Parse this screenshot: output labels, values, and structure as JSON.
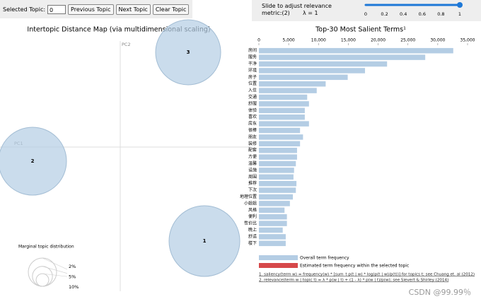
{
  "controls": {
    "selected_topic_label": "Selected Topic:",
    "selected_topic_value": "0",
    "buttons": [
      "Previous Topic",
      "Next Topic",
      "Clear Topic"
    ]
  },
  "slider": {
    "label": "Slide to adjust relevance metric:(2)",
    "lambda_label": "λ = 1",
    "min": 0,
    "max": 1,
    "value": 1,
    "ticks": [
      0,
      0.2,
      0.4,
      0.6,
      0.8,
      1
    ]
  },
  "topic_map": {
    "title": "Intertopic Distance Map (via multidimensional scaling)",
    "x_axis_label": "PC1",
    "y_axis_label": "PC2",
    "topics": [
      "1",
      "2",
      "3"
    ],
    "marginal_title": "Marginal topic distribution",
    "marginal_sizes": [
      {
        "value": 2,
        "label": "2%"
      },
      {
        "value": 5,
        "label": "5%"
      },
      {
        "value": 10,
        "label": "10%"
      }
    ]
  },
  "chart_data": {
    "type": "bar",
    "orientation": "horizontal",
    "title": "Top-30 Most Salient Terms¹",
    "categories": [
      "房间",
      "服务",
      "干净",
      "环境",
      "房子",
      "位置",
      "入住",
      "交通",
      "舒服",
      "体验",
      "喜欢",
      "房东",
      "很棒",
      "朋友",
      "装修",
      "配套",
      "方便",
      "温馨",
      "设施",
      "周围",
      "推荐",
      "下次",
      "地理位置",
      "小姐姐",
      "风格",
      "便利",
      "性价比",
      "晚上",
      "舒适",
      "楼下"
    ],
    "series": [
      {
        "name": "Overall term frequency",
        "color": "#b4cde4",
        "values": [
          32600,
          27900,
          21500,
          17800,
          14900,
          11200,
          9700,
          8100,
          8400,
          7700,
          7700,
          8400,
          6900,
          7400,
          6900,
          6400,
          6400,
          6200,
          5900,
          5800,
          6300,
          6200,
          5700,
          5200,
          4300,
          4700,
          4700,
          4000,
          4500,
          4500
        ]
      }
    ],
    "legend_extra": {
      "name": "Estimated term frequency within the selected topic",
      "color": "#d6484a"
    },
    "xlim": [
      0,
      35000
    ],
    "xticks": [
      0,
      {
        "value": 5000,
        "label": "5,000"
      },
      {
        "value": 10000,
        "label": "10,000"
      },
      {
        "value": 15000,
        "label": "15,000"
      },
      {
        "value": 20000,
        "label": "20,000"
      },
      {
        "value": 25000,
        "label": "25,000"
      },
      {
        "value": 30000,
        "label": "30,000"
      },
      {
        "value": 35000,
        "label": "35,000"
      }
    ]
  },
  "footnotes": [
    "1. saliency(term w) = frequency(w) * [sum_t p(t | w) * log(p(t | w)/p(t))] for topics t; see Chuang et. al (2012)",
    "2. relevance(term w | topic t) = λ * p(w | t) + (1 - λ) * p(w | t)/p(w); see Sievert & Shirley (2014)"
  ],
  "watermark": "CSDN @99.99％"
}
